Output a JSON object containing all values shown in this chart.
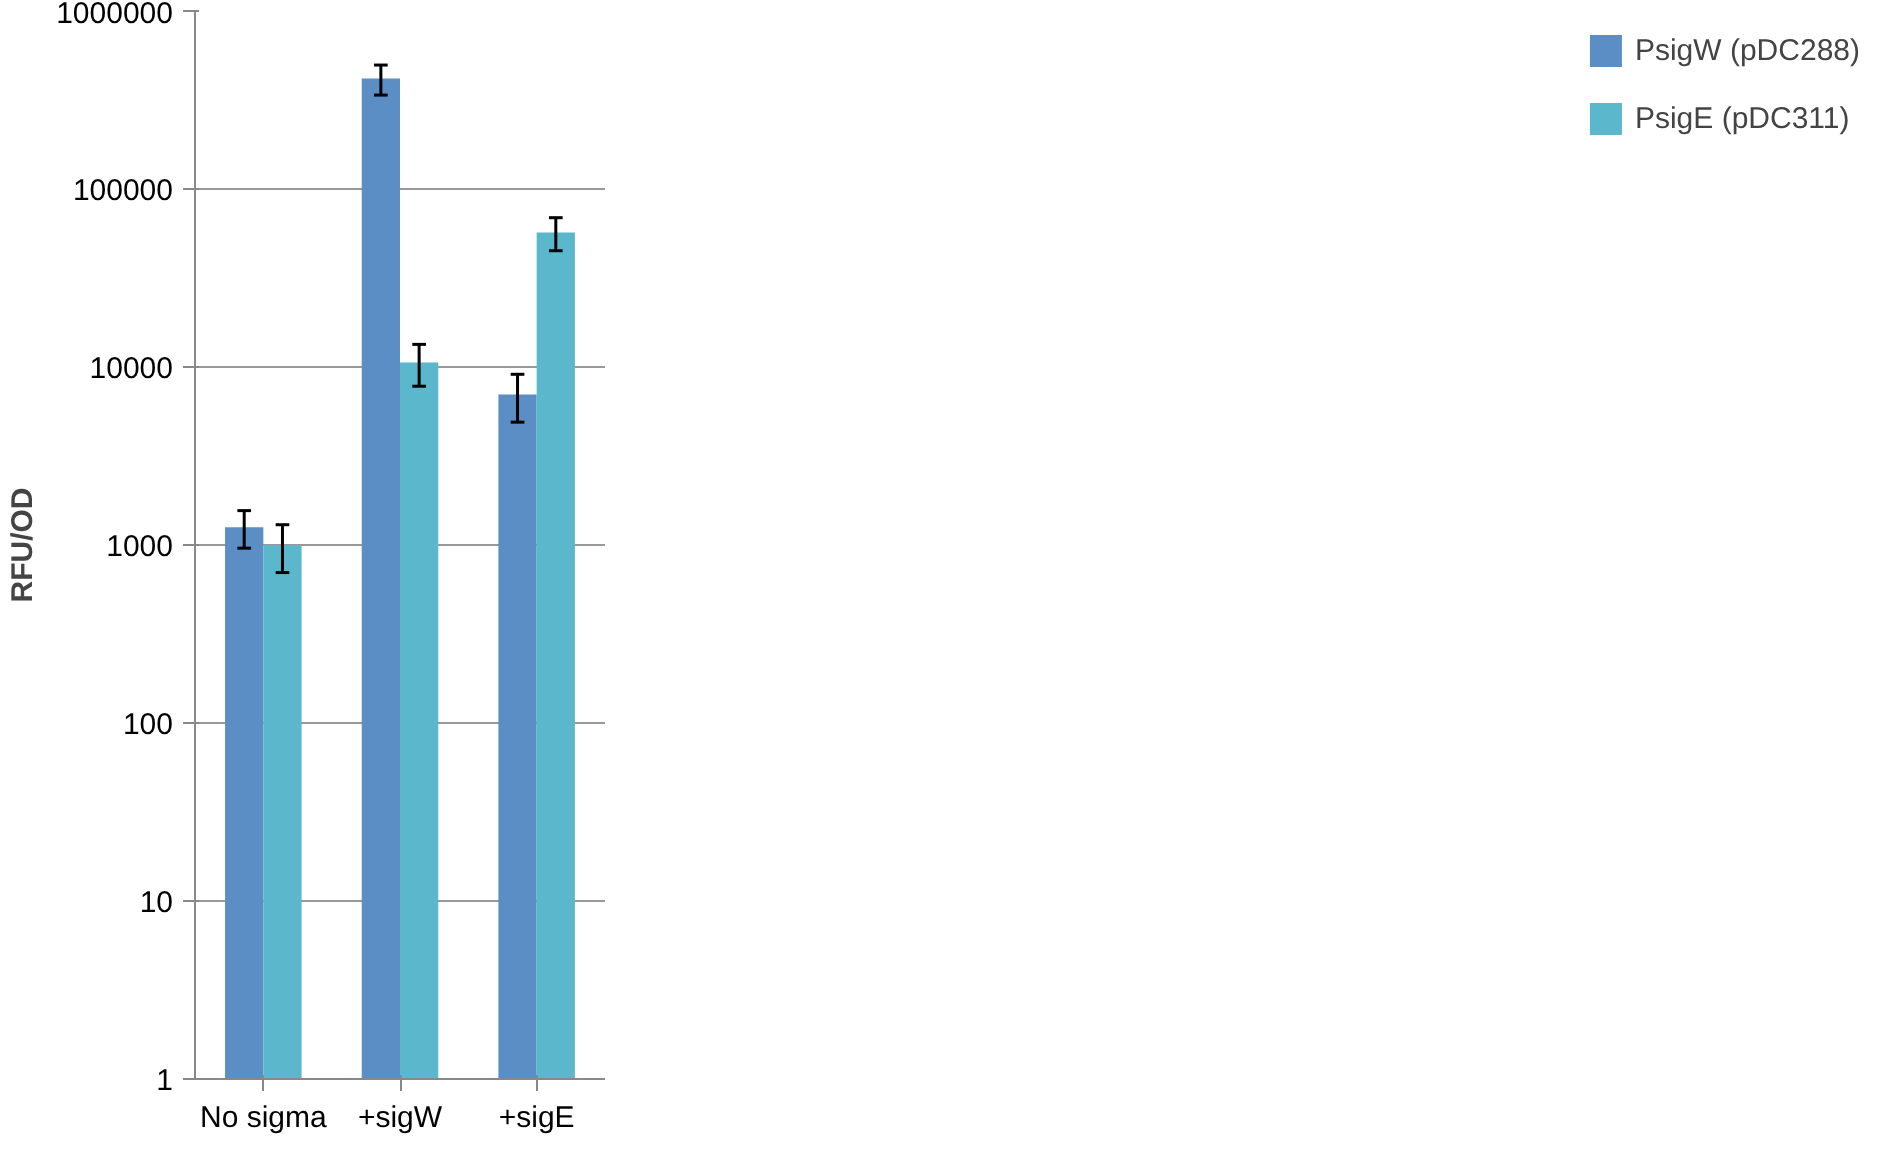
{
  "chart_data": {
    "type": "bar",
    "ylabel": "RFU/OD",
    "categories": [
      "No sigma",
      "+sigW",
      "+sigE"
    ],
    "series": [
      {
        "name": "PsigW (pDC288)",
        "color": "#5b8ec5",
        "values": [
          1260,
          417000,
          7000
        ],
        "errors": [
          300,
          80000,
          2100
        ]
      },
      {
        "name": "PsigE (pDC311)",
        "color": "#5bb8cc",
        "values": [
          1000,
          10600,
          57000
        ],
        "errors": [
          300,
          2800,
          12000
        ]
      }
    ],
    "log": "y",
    "ylim": [
      1,
      1000000
    ],
    "yticks": [
      1,
      10,
      100,
      1000,
      10000,
      100000,
      1000000
    ],
    "grid": "y",
    "legend": "right"
  }
}
